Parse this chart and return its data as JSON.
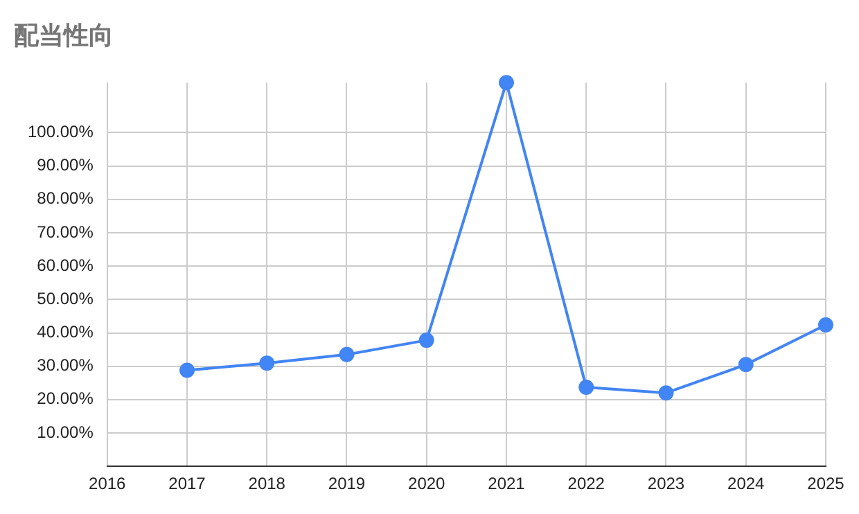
{
  "chart_data": {
    "type": "line",
    "title": "配当性向",
    "categories": [
      "2016",
      "2017",
      "2018",
      "2019",
      "2020",
      "2021",
      "2022",
      "2023",
      "2024",
      "2025"
    ],
    "series": [
      {
        "color": "#4285f4",
        "values": [
          null,
          28.8,
          30.9,
          33.5,
          37.8,
          115,
          23.7,
          22.0,
          30.5,
          42.4
        ]
      }
    ],
    "ylim": [
      0,
      115
    ],
    "yticks": [
      {
        "value": 10,
        "label": "10.00%"
      },
      {
        "value": 20,
        "label": "20.00%"
      },
      {
        "value": 30,
        "label": "30.00%"
      },
      {
        "value": 40,
        "label": "40.00%"
      },
      {
        "value": 50,
        "label": "50.00%"
      },
      {
        "value": 60,
        "label": "60.00%"
      },
      {
        "value": 70,
        "label": "70.00%"
      },
      {
        "value": 80,
        "label": "80.00%"
      },
      {
        "value": 90,
        "label": "90.00%"
      },
      {
        "value": 100,
        "label": "100.00%"
      }
    ],
    "grid": true,
    "legend": false,
    "marker": "circle",
    "line_style": "solid"
  }
}
